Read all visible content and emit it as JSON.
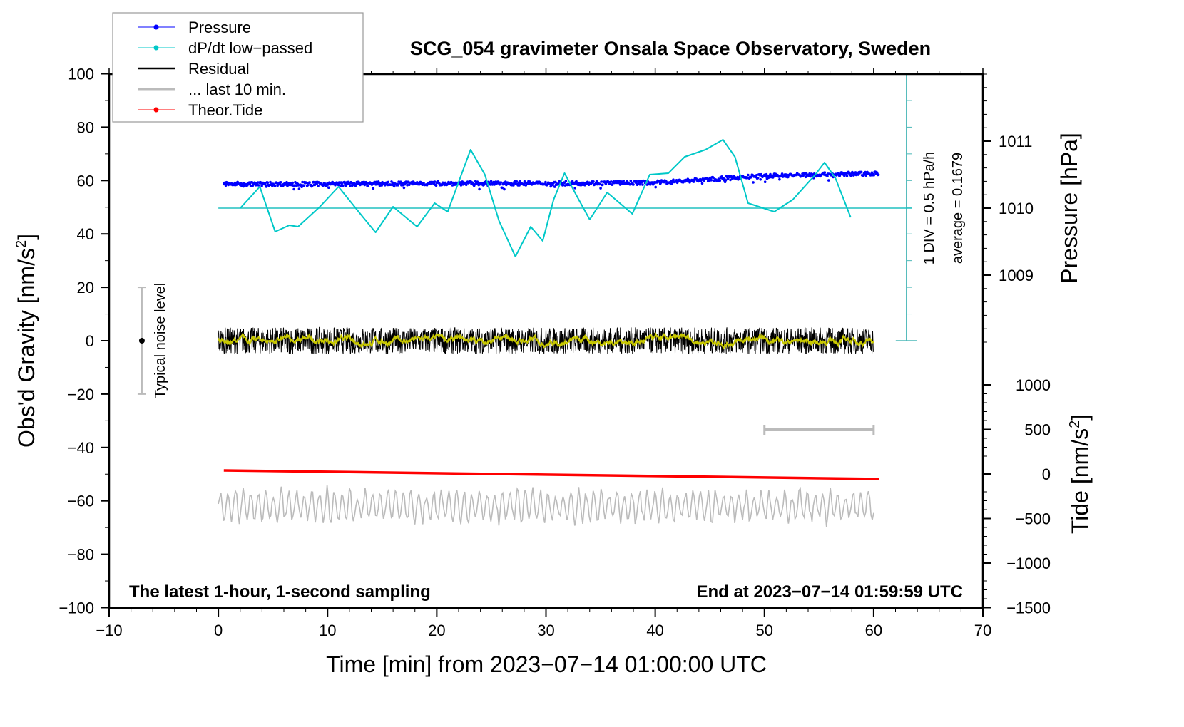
{
  "chart_data": {
    "type": "line",
    "title": "SCG_054 gravimeter Onsala Space Observatory, Sweden",
    "xlabel": "Time [min] from 2023−07−14 01:00:00 UTC",
    "ylabel": "Obs'd Gravity [nm/s",
    "ylabel_sup": "2",
    "ylabel_end": "]",
    "y2label": "Pressure [hPa]",
    "y3label": "Tide [nm/s",
    "y3label_sup": "2",
    "y3label_end": "]",
    "xlim": [
      -10,
      70
    ],
    "ylim": [
      -100,
      100
    ],
    "xticks": [
      "−10",
      "0",
      "10",
      "20",
      "30",
      "40",
      "50",
      "60",
      "70"
    ],
    "yticks": [
      "100",
      "80",
      "60",
      "40",
      "20",
      "0",
      "−20",
      "−40",
      "−60",
      "−80",
      "−100"
    ],
    "pressure_ticks": [
      "1011",
      "1010",
      "1009"
    ],
    "tide_ticks": [
      "1000",
      "500",
      "0",
      "−500",
      "−1000",
      "−1500"
    ],
    "legend": {
      "placement": "top-left",
      "entries": [
        "Pressure",
        "dP/dt low−passed",
        "Residual",
        "... last 10 min.",
        "Theor.Tide"
      ]
    },
    "annotations": {
      "left": "The latest 1-hour, 1-second sampling",
      "right": "End at 2023−07−14 01:59:59 UTC",
      "noise": "Typical noise level",
      "div": "1 DIV = 0.5 hPa/h",
      "average": "average = 0.1679"
    },
    "noise_level": [
      -20,
      20
    ],
    "dpdt_average": 0.1679,
    "dpdt_div": 0.5,
    "series": [
      {
        "name": "Pressure",
        "unit": "hPa",
        "color": "#0000ff",
        "x": [
          0.5,
          10,
          20,
          30,
          40,
          45,
          50,
          55,
          60.5
        ],
        "values": [
          1010.36,
          1010.36,
          1010.37,
          1010.37,
          1010.38,
          1010.43,
          1010.48,
          1010.5,
          1010.52
        ]
      },
      {
        "name": "dP/dt low-passed",
        "unit": "hPa/h",
        "color": "#00c8c8",
        "x": [
          2,
          3.8,
          5.2,
          6.5,
          7.3,
          9.3,
          11,
          13,
          14.4,
          16,
          18.2,
          19.8,
          21,
          23.1,
          24.4,
          25.7,
          27.2,
          28.6,
          29.7,
          30.7,
          31.7,
          33,
          34,
          35.6,
          37.9,
          39.5,
          41.2,
          42.7,
          44.6,
          46.2,
          47.3,
          48.5,
          50.9,
          52.6,
          54.6,
          55.5,
          56.5,
          57.9
        ],
        "values": [
          0.168,
          0.569,
          -0.273,
          -0.152,
          -0.179,
          0.195,
          0.569,
          0.061,
          -0.286,
          0.195,
          -0.179,
          0.261,
          0.101,
          1.263,
          0.795,
          -0.072,
          -0.74,
          -0.179,
          -0.446,
          0.328,
          0.822,
          0.328,
          -0.046,
          0.462,
          0.061,
          0.795,
          0.822,
          1.129,
          1.263,
          1.45,
          1.129,
          0.261,
          0.101,
          0.328,
          0.782,
          1.022,
          0.729,
          -0.006
        ]
      },
      {
        "name": "Residual",
        "unit": "nm/s2",
        "color": "#000000",
        "x": [
          0,
          60
        ],
        "values": [
          0,
          0
        ],
        "noise_amplitude": 5
      },
      {
        "name": "... last 10 min.",
        "unit": "nm/s2",
        "color": "#bbbbbb",
        "x": [
          50,
          60
        ],
        "values": [
          0,
          0
        ]
      },
      {
        "name": "Theor.Tide",
        "unit": "nm/s2",
        "color": "#ff0000",
        "x": [
          0.5,
          60.5
        ],
        "values": [
          40,
          -56
        ]
      }
    ]
  }
}
